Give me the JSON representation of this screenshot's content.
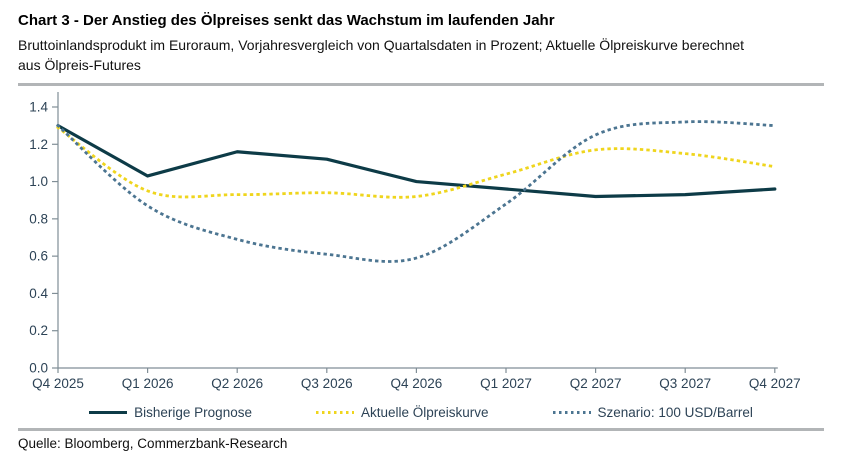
{
  "header": {
    "title": "Chart 3 - Der Anstieg des Ölpreises senkt das Wachstum im laufenden Jahr",
    "subtitle": "Bruttoinlandsprodukt im Euroraum, Vorjahresvergleich von Quartalsdaten in Prozent; Aktuelle Ölpreiskurve berechnet aus Ölpreis-Futures"
  },
  "footer": {
    "source": "Quelle: Bloomberg, Commerzbank-Research"
  },
  "colors": {
    "dark_petrol": "#0d3b47",
    "yellow": "#efd51d",
    "steel_blue": "#4c7591",
    "axis": "#808e96",
    "tick_text": "#2d4356",
    "divider": "#b2b5b7"
  },
  "chart_data": {
    "type": "line",
    "title": "Chart 3 - Der Anstieg des Ölpreises senkt das Wachstum im laufenden Jahr",
    "xlabel": "",
    "ylabel": "",
    "ylim": [
      0,
      1.4
    ],
    "yticks": [
      "0.0",
      "0.2",
      "0.4",
      "0.6",
      "0.8",
      "1.0",
      "1.2",
      "1.4"
    ],
    "grid": false,
    "legend_position": "bottom",
    "categories": [
      "Q4 2025",
      "Q1 2026",
      "Q2 2026",
      "Q3 2026",
      "Q4 2026",
      "Q1 2027",
      "Q2 2027",
      "Q3 2027",
      "Q4 2027"
    ],
    "series": [
      {
        "name": "Bisherige Prognose",
        "style": "solid",
        "color": "#0d3b47",
        "values": [
          1.3,
          1.03,
          1.16,
          1.12,
          1.0,
          0.96,
          0.92,
          0.93,
          0.96
        ]
      },
      {
        "name": "Aktuelle Ölpreiskurve",
        "style": "dotted",
        "color": "#efd51d",
        "values": [
          1.29,
          0.95,
          0.93,
          0.94,
          0.92,
          1.04,
          1.17,
          1.15,
          1.08
        ]
      },
      {
        "name": "Szenario: 100 USD/Barrel",
        "style": "dotted",
        "color": "#4c7591",
        "values": [
          1.3,
          0.87,
          0.69,
          0.61,
          0.59,
          0.88,
          1.25,
          1.32,
          1.3
        ]
      }
    ]
  }
}
